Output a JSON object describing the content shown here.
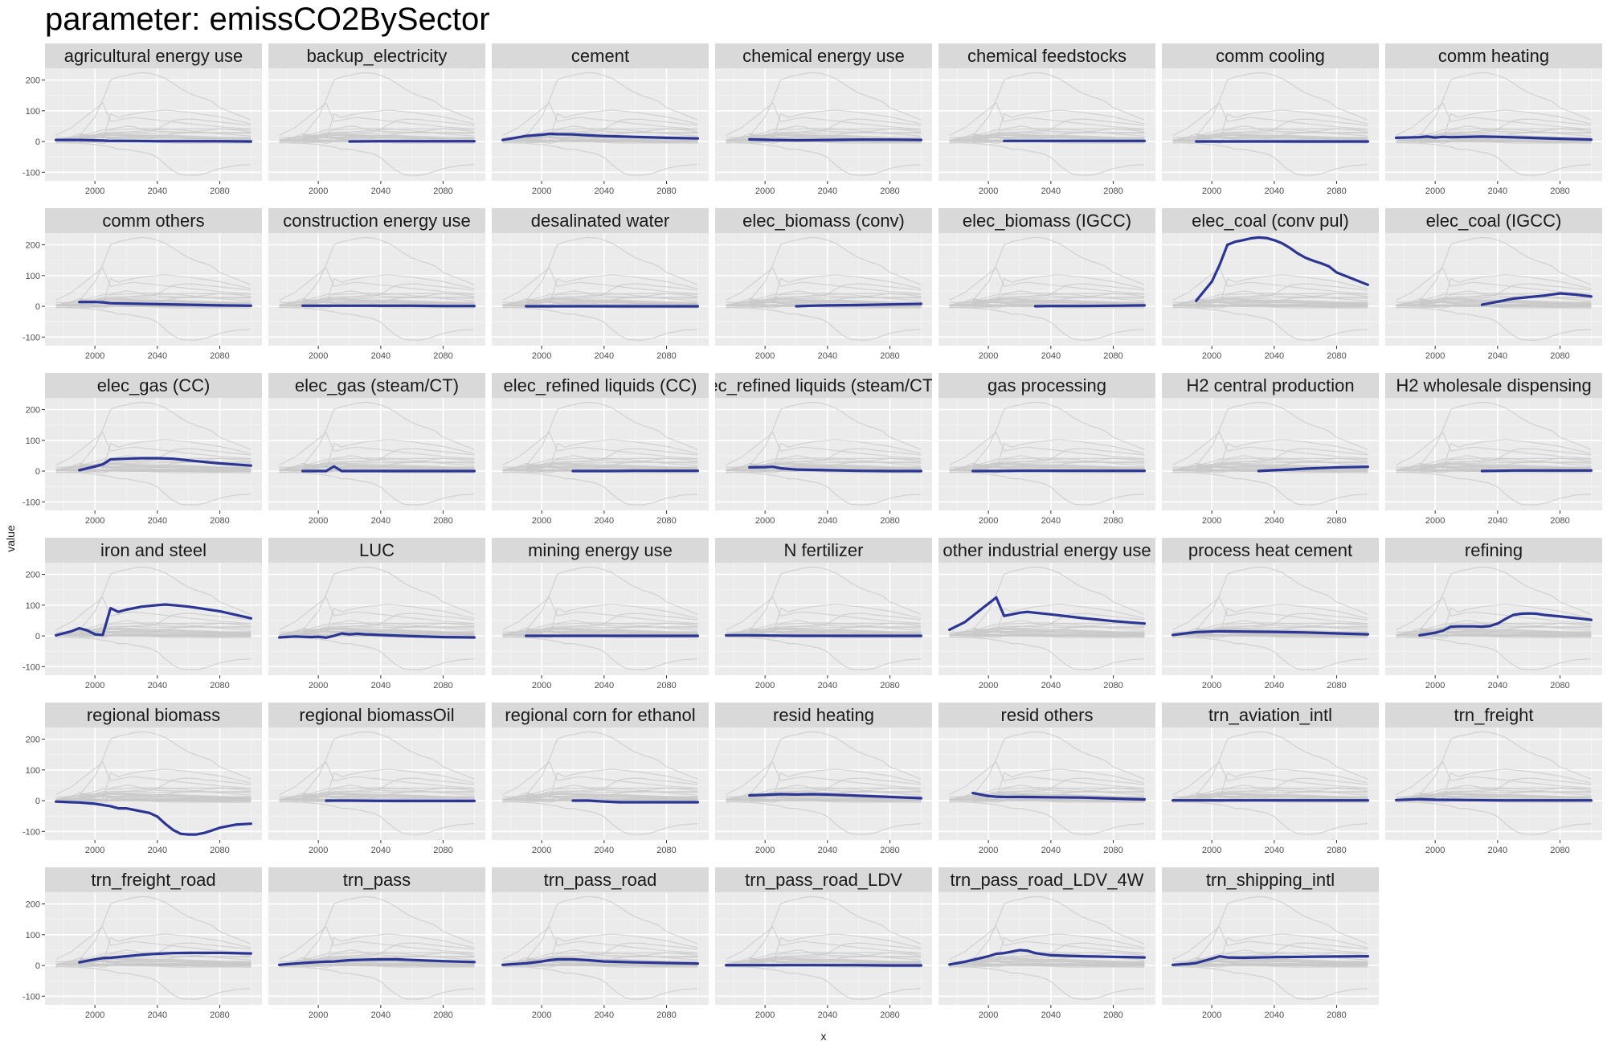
{
  "title": "parameter: emissCO2BySector",
  "chart_data": {
    "type": "line",
    "layout": "facet-grid",
    "xlabel": "x",
    "ylabel": "value",
    "xticks": [
      2000,
      2040,
      2080
    ],
    "yticks": [
      -100,
      0,
      100,
      200
    ],
    "xlim": [
      1968,
      2107
    ],
    "ylim": [
      -128,
      238
    ],
    "grid": true,
    "highlight_color": "#2b3594",
    "background_color": "#c8c8c8",
    "panel_color": "#ebebeb",
    "strip_color": "#d9d9d9",
    "panels": [
      {
        "name": "agricultural energy use",
        "x": [
          1975,
          1990,
          2005,
          2010,
          2020,
          2040,
          2060,
          2080,
          2100
        ],
        "y": [
          5,
          5,
          3,
          2,
          2,
          1,
          1,
          1,
          0
        ]
      },
      {
        "name": "backup_electricity",
        "x": [
          2020,
          2040,
          2060,
          2080,
          2100
        ],
        "y": [
          0,
          1,
          1,
          1,
          1
        ]
      },
      {
        "name": "cement",
        "x": [
          1975,
          1990,
          2000,
          2005,
          2010,
          2020,
          2030,
          2040,
          2060,
          2080,
          2100
        ],
        "y": [
          5,
          18,
          22,
          25,
          24,
          23,
          20,
          18,
          15,
          12,
          10
        ]
      },
      {
        "name": "chemical energy use",
        "x": [
          1990,
          2005,
          2020,
          2040,
          2060,
          2080,
          2100
        ],
        "y": [
          7,
          5,
          4,
          5,
          6,
          6,
          5
        ]
      },
      {
        "name": "chemical feedstocks",
        "x": [
          2010,
          2020,
          2040,
          2060,
          2080,
          2100
        ],
        "y": [
          2,
          2,
          2,
          2,
          2,
          2
        ]
      },
      {
        "name": "comm cooling",
        "x": [
          1990,
          2005,
          2020,
          2040,
          2060,
          2080,
          2100
        ],
        "y": [
          0,
          0,
          0,
          0,
          0,
          0,
          0
        ]
      },
      {
        "name": "comm heating",
        "x": [
          1975,
          1990,
          1995,
          2000,
          2005,
          2010,
          2020,
          2030,
          2040,
          2060,
          2080,
          2100
        ],
        "y": [
          12,
          14,
          16,
          13,
          15,
          14,
          15,
          16,
          15,
          12,
          9,
          6
        ]
      },
      {
        "name": "comm others",
        "x": [
          1990,
          2000,
          2005,
          2010,
          2020,
          2040,
          2060,
          2080,
          2100
        ],
        "y": [
          14,
          14,
          13,
          10,
          9,
          7,
          5,
          3,
          2
        ]
      },
      {
        "name": "construction energy use",
        "x": [
          1990,
          2005,
          2020,
          2040,
          2060,
          2080,
          2100
        ],
        "y": [
          2,
          2,
          2,
          2,
          2,
          1,
          1
        ]
      },
      {
        "name": "desalinated water",
        "x": [
          1990,
          2005,
          2020,
          2040,
          2060,
          2080,
          2100
        ],
        "y": [
          0,
          0,
          0,
          0,
          0,
          0,
          0
        ]
      },
      {
        "name": "elec_biomass (conv)",
        "x": [
          2020,
          2030,
          2040,
          2060,
          2080,
          2100
        ],
        "y": [
          0,
          2,
          3,
          4,
          6,
          8
        ]
      },
      {
        "name": "elec_biomass (IGCC)",
        "x": [
          2030,
          2040,
          2060,
          2080,
          2100
        ],
        "y": [
          0,
          1,
          1,
          2,
          3
        ]
      },
      {
        "name": "elec_coal (conv pul)",
        "x": [
          1990,
          2000,
          2005,
          2010,
          2015,
          2020,
          2025,
          2030,
          2035,
          2040,
          2045,
          2050,
          2055,
          2060,
          2065,
          2070,
          2075,
          2080,
          2090,
          2100
        ],
        "y": [
          18,
          80,
          135,
          200,
          210,
          215,
          221,
          224,
          222,
          215,
          205,
          190,
          172,
          158,
          148,
          140,
          130,
          110,
          90,
          70
        ]
      },
      {
        "name": "elec_coal (IGCC)",
        "x": [
          2030,
          2040,
          2050,
          2060,
          2070,
          2080,
          2090,
          2100
        ],
        "y": [
          5,
          15,
          25,
          30,
          35,
          42,
          38,
          32
        ]
      },
      {
        "name": "elec_gas (CC)",
        "x": [
          1990,
          2000,
          2005,
          2010,
          2020,
          2030,
          2040,
          2050,
          2060,
          2080,
          2100
        ],
        "y": [
          3,
          15,
          22,
          38,
          40,
          42,
          42,
          40,
          35,
          25,
          18
        ]
      },
      {
        "name": "elec_gas (steam/CT)",
        "x": [
          1990,
          2000,
          2005,
          2010,
          2015,
          2020,
          2040,
          2060,
          2080,
          2100
        ],
        "y": [
          0,
          0,
          0,
          15,
          0,
          0,
          0,
          0,
          0,
          0
        ]
      },
      {
        "name": "elec_refined liquids (CC)",
        "x": [
          2020,
          2040,
          2060,
          2080,
          2100
        ],
        "y": [
          0,
          0,
          1,
          1,
          1
        ]
      },
      {
        "name": "ec_refined liquids (steam/CT)",
        "x": [
          1990,
          2000,
          2005,
          2010,
          2020,
          2040,
          2060,
          2080,
          2100
        ],
        "y": [
          12,
          13,
          14,
          9,
          5,
          3,
          1,
          0,
          0
        ]
      },
      {
        "name": "gas processing",
        "x": [
          1990,
          2005,
          2020,
          2040,
          2060,
          2080,
          2100
        ],
        "y": [
          0,
          0,
          1,
          1,
          1,
          1,
          1
        ]
      },
      {
        "name": "H2 central production",
        "x": [
          2030,
          2040,
          2050,
          2060,
          2070,
          2080,
          2100
        ],
        "y": [
          0,
          3,
          5,
          8,
          10,
          12,
          14
        ]
      },
      {
        "name": "H2 wholesale dispensing",
        "x": [
          2030,
          2040,
          2050,
          2060,
          2080,
          2100
        ],
        "y": [
          0,
          1,
          2,
          2,
          2,
          2
        ]
      },
      {
        "name": "iron and steel",
        "x": [
          1975,
          1985,
          1990,
          1995,
          2000,
          2005,
          2010,
          2015,
          2020,
          2030,
          2040,
          2045,
          2050,
          2060,
          2080,
          2100
        ],
        "y": [
          2,
          15,
          25,
          18,
          5,
          3,
          90,
          78,
          85,
          95,
          100,
          102,
          100,
          95,
          80,
          57
        ]
      },
      {
        "name": "LUC",
        "x": [
          1975,
          1985,
          1995,
          2000,
          2005,
          2010,
          2015,
          2020,
          2025,
          2030,
          2040,
          2060,
          2080,
          2100
        ],
        "y": [
          -5,
          -2,
          -4,
          -3,
          -6,
          0,
          8,
          5,
          7,
          5,
          3,
          -1,
          -4,
          -5
        ]
      },
      {
        "name": "mining energy use",
        "x": [
          1990,
          2005,
          2020,
          2040,
          2060,
          2080,
          2100
        ],
        "y": [
          0,
          0,
          0,
          0,
          0,
          0,
          0
        ]
      },
      {
        "name": "N fertilizer",
        "x": [
          1975,
          1990,
          2005,
          2020,
          2040,
          2060,
          2080,
          2100
        ],
        "y": [
          2,
          2,
          1,
          0,
          0,
          0,
          0,
          0
        ]
      },
      {
        "name": "other industrial energy use",
        "x": [
          1975,
          1985,
          1995,
          2005,
          2010,
          2015,
          2020,
          2025,
          2030,
          2040,
          2060,
          2080,
          2100
        ],
        "y": [
          20,
          45,
          85,
          125,
          65,
          70,
          75,
          78,
          75,
          70,
          58,
          48,
          40
        ]
      },
      {
        "name": "process heat cement",
        "x": [
          1975,
          1990,
          2005,
          2020,
          2040,
          2060,
          2080,
          2100
        ],
        "y": [
          3,
          12,
          15,
          14,
          13,
          11,
          8,
          5
        ]
      },
      {
        "name": "refining",
        "x": [
          1990,
          2000,
          2005,
          2010,
          2015,
          2020,
          2025,
          2030,
          2035,
          2040,
          2045,
          2050,
          2055,
          2060,
          2065,
          2070,
          2080,
          2090,
          2100
        ],
        "y": [
          2,
          10,
          17,
          30,
          31,
          31,
          31,
          30,
          32,
          40,
          55,
          68,
          72,
          73,
          72,
          68,
          63,
          58,
          52
        ]
      },
      {
        "name": "regional biomass",
        "x": [
          1975,
          1985,
          1990,
          2000,
          2005,
          2010,
          2015,
          2020,
          2025,
          2030,
          2035,
          2040,
          2045,
          2050,
          2055,
          2060,
          2065,
          2070,
          2075,
          2080,
          2090,
          2100
        ],
        "y": [
          -3,
          -5,
          -6,
          -10,
          -14,
          -18,
          -25,
          -25,
          -30,
          -35,
          -40,
          -52,
          -75,
          -95,
          -108,
          -110,
          -110,
          -105,
          -97,
          -88,
          -78,
          -75
        ]
      },
      {
        "name": "regional biomassOil",
        "x": [
          2005,
          2020,
          2040,
          2060,
          2080,
          2100
        ],
        "y": [
          0,
          0,
          -1,
          -1,
          -1,
          -1
        ]
      },
      {
        "name": "regional corn for ethanol",
        "x": [
          2020,
          2030,
          2040,
          2050,
          2060,
          2080,
          2100
        ],
        "y": [
          0,
          0,
          -3,
          -5,
          -5,
          -5,
          -5
        ]
      },
      {
        "name": "resid heating",
        "x": [
          1990,
          2005,
          2010,
          2020,
          2030,
          2040,
          2060,
          2080,
          2100
        ],
        "y": [
          17,
          20,
          21,
          20,
          21,
          20,
          16,
          12,
          8
        ]
      },
      {
        "name": "resid others",
        "x": [
          1990,
          2000,
          2005,
          2010,
          2020,
          2040,
          2060,
          2080,
          2100
        ],
        "y": [
          25,
          15,
          13,
          12,
          12,
          11,
          10,
          7,
          4
        ]
      },
      {
        "name": "trn_aviation_intl",
        "x": [
          1975,
          1990,
          2005,
          2020,
          2040,
          2060,
          2080,
          2100
        ],
        "y": [
          1,
          1,
          1,
          1,
          1,
          1,
          1,
          1
        ]
      },
      {
        "name": "trn_freight",
        "x": [
          1975,
          1985,
          1990,
          2000,
          2020,
          2040,
          2060,
          2080,
          2100
        ],
        "y": [
          2,
          4,
          5,
          3,
          2,
          1,
          1,
          1,
          1
        ]
      },
      {
        "name": "trn_freight_road",
        "x": [
          1990,
          2000,
          2005,
          2010,
          2020,
          2030,
          2040,
          2050,
          2060,
          2080,
          2100
        ],
        "y": [
          10,
          20,
          24,
          25,
          30,
          35,
          38,
          40,
          41,
          41,
          39
        ]
      },
      {
        "name": "trn_pass",
        "x": [
          1975,
          1990,
          2000,
          2005,
          2010,
          2020,
          2030,
          2040,
          2050,
          2060,
          2080,
          2100
        ],
        "y": [
          2,
          8,
          11,
          12,
          13,
          17,
          19,
          20,
          20,
          18,
          14,
          11
        ]
      },
      {
        "name": "trn_pass_road",
        "x": [
          1975,
          1990,
          2000,
          2005,
          2010,
          2020,
          2030,
          2040,
          2060,
          2080,
          2100
        ],
        "y": [
          2,
          7,
          13,
          17,
          20,
          20,
          17,
          13,
          10,
          8,
          6
        ]
      },
      {
        "name": "trn_pass_road_LDV",
        "x": [
          1975,
          1990,
          2005,
          2020,
          2040,
          2060,
          2080,
          2100
        ],
        "y": [
          1,
          1,
          1,
          1,
          1,
          1,
          0,
          0
        ]
      },
      {
        "name": "trn_pass_road_LDV_4W",
        "x": [
          1975,
          1985,
          1990,
          2000,
          2005,
          2010,
          2015,
          2020,
          2025,
          2030,
          2040,
          2060,
          2080,
          2100
        ],
        "y": [
          3,
          12,
          18,
          30,
          38,
          40,
          45,
          50,
          48,
          40,
          33,
          30,
          28,
          26
        ]
      },
      {
        "name": "trn_shipping_intl",
        "x": [
          1975,
          1985,
          1990,
          2000,
          2005,
          2010,
          2020,
          2040,
          2060,
          2080,
          2100
        ],
        "y": [
          2,
          5,
          8,
          22,
          30,
          26,
          25,
          27,
          28,
          29,
          30
        ]
      }
    ]
  }
}
